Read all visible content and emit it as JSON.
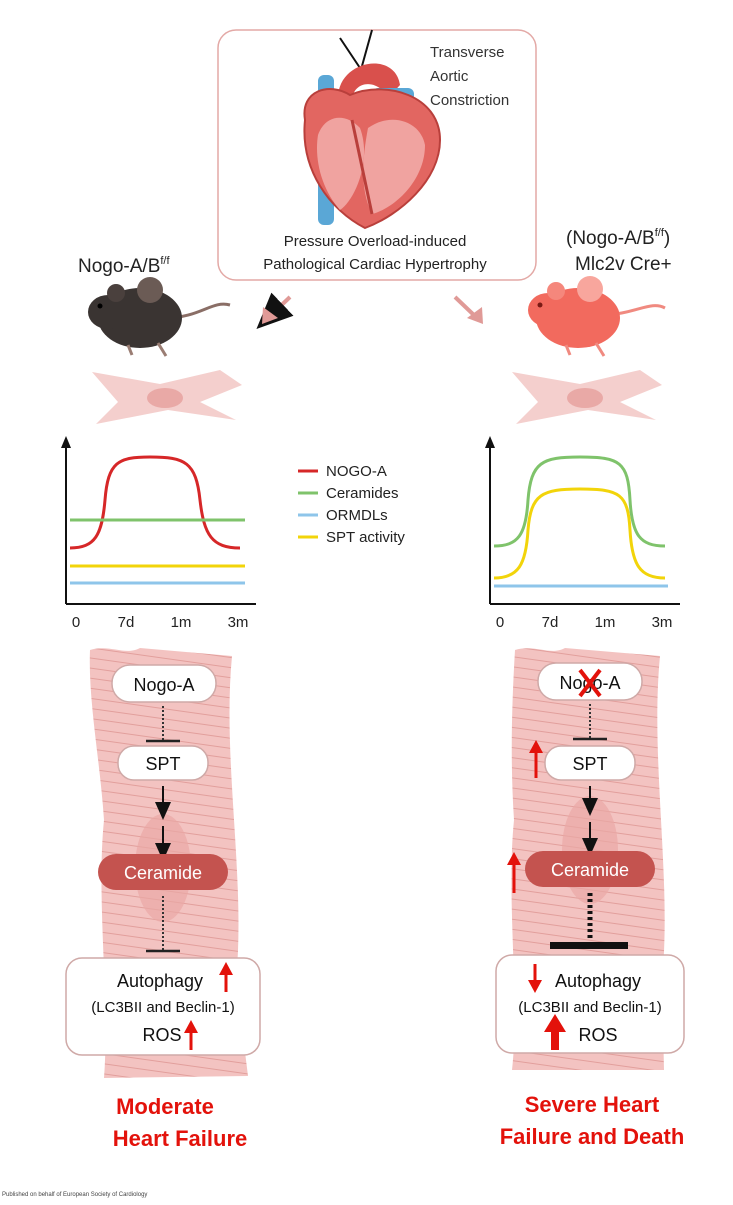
{
  "colors": {
    "nogo": "#d62728",
    "ceramides": "#7fc36b",
    "ormdls": "#8ec5ea",
    "spt": "#f2d40a",
    "accent_red": "#e3120b",
    "ceramide_fill": "#c4534f",
    "cell_pink": "#f2c1bf"
  },
  "top_box": {
    "procedure": [
      "Transverse",
      "Aortic",
      "Constriction"
    ],
    "caption": [
      "Pressure Overload-induced",
      "Pathological Cardiac Hypertrophy"
    ],
    "icon": "heart-icon"
  },
  "left": {
    "genotype_main": "Nogo-A/B",
    "genotype_sup": "f/f",
    "mouse_icon": "mouse-icon",
    "outcome": [
      "Moderate",
      "Heart Failure"
    ]
  },
  "right": {
    "genotype_line1_prefix": "(Nogo-A/B",
    "genotype_line1_sup": "f/f",
    "genotype_line1_suffix": ")",
    "genotype_line2": "Mlc2v Cre+",
    "mouse_icon": "mouse-icon",
    "outcome": [
      "Severe Heart",
      "Failure and Death"
    ]
  },
  "legend": [
    {
      "label": "NOGO-A",
      "color": "#d62728"
    },
    {
      "label": "Ceramides",
      "color": "#7fc36b"
    },
    {
      "label": "ORMDLs",
      "color": "#8ec5ea"
    },
    {
      "label": "SPT activity",
      "color": "#f2d40a"
    }
  ],
  "x_ticks": [
    "0",
    "7d",
    "1m",
    "3m"
  ],
  "pathway": {
    "nogo": "Nogo-A",
    "spt": "SPT",
    "ceramide": "Ceramide",
    "autophagy": "Autophagy",
    "lc3": "(LC3BII and Beclin-1)",
    "ros": "ROS"
  },
  "footer": "Published on behalf of European Society of Cardiology"
}
